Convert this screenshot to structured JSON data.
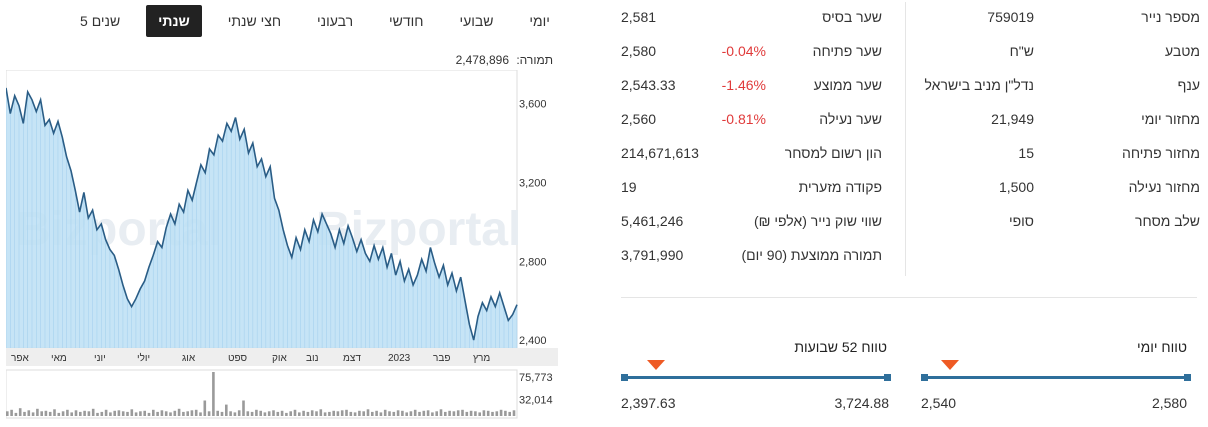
{
  "tabs": [
    {
      "label": "יומי",
      "active": false
    },
    {
      "label": "שבועי",
      "active": false
    },
    {
      "label": "חודשי",
      "active": false
    },
    {
      "label": "רבעוני",
      "active": false
    },
    {
      "label": "חצי שנתי",
      "active": false
    },
    {
      "label": "שנתי",
      "active": true
    },
    {
      "label": "5 שנים",
      "active": false
    }
  ],
  "volume_header": {
    "label": "תמורה:",
    "value": "2,478,896"
  },
  "chart_data": {
    "type": "area",
    "watermark": "Bizportal",
    "y_ticks": [
      "3,600",
      "3,200",
      "2,800",
      "2,400"
    ],
    "y_tick_values": [
      3600,
      3200,
      2800,
      2400
    ],
    "ylim": [
      2360,
      3700
    ],
    "x_ticks": [
      "אפר",
      "מאי",
      "יוני",
      "יולי",
      "אוג",
      "ספט",
      "אוק",
      "נוב",
      "דצמ",
      "2023",
      "פבר",
      "מרץ"
    ],
    "values": [
      3680,
      3550,
      3640,
      3590,
      3500,
      3660,
      3620,
      3560,
      3620,
      3490,
      3520,
      3450,
      3510,
      3430,
      3330,
      3260,
      3160,
      3050,
      3150,
      3020,
      3060,
      2960,
      2990,
      2910,
      2860,
      2830,
      2760,
      2680,
      2610,
      2570,
      2610,
      2660,
      2700,
      2770,
      2830,
      2900,
      2870,
      2970,
      3040,
      2990,
      3090,
      3050,
      3160,
      3110,
      3200,
      3290,
      3250,
      3370,
      3340,
      3440,
      3410,
      3500,
      3460,
      3530,
      3420,
      3470,
      3350,
      3400,
      3280,
      3320,
      3230,
      3280,
      3120,
      3060,
      2960,
      2880,
      2820,
      2920,
      2860,
      2960,
      2900,
      3010,
      2950,
      3040,
      2990,
      2940,
      2870,
      2960,
      2890,
      2980,
      2920,
      2850,
      2910,
      2840,
      2800,
      2880,
      2810,
      2870,
      2770,
      2840,
      2730,
      2800,
      2700,
      2760,
      2680,
      2730,
      2810,
      2750,
      2870,
      2790,
      2720,
      2780,
      2680,
      2740,
      2650,
      2720,
      2600,
      2480,
      2400,
      2520,
      2590,
      2550,
      2620,
      2570,
      2640,
      2570,
      2500,
      2530,
      2580
    ],
    "volume_ticks": [
      "75,773",
      "32,014"
    ],
    "volume_tick_values": [
      75773,
      32014
    ],
    "volume_max": 85000,
    "volumes": [
      9000,
      12000,
      6000,
      15000,
      8000,
      11000,
      7000,
      14000,
      9000,
      10000,
      8000,
      13000,
      6000,
      9000,
      12000,
      7000,
      11000,
      8000,
      10000,
      9000,
      14000,
      6000,
      8000,
      12000,
      7000,
      10000,
      11000,
      9000,
      8000,
      13000,
      7000,
      9000,
      10000,
      6000,
      12000,
      8000,
      11000,
      9000,
      7000,
      10000,
      14000,
      8000,
      9000,
      11000,
      12000,
      7000,
      30000,
      9000,
      85000,
      10000,
      8000,
      22000,
      9000,
      7000,
      11000,
      30000,
      9000,
      8000,
      12000,
      10000,
      7000,
      9000,
      11000,
      8000,
      10000,
      6000,
      9000,
      12000,
      7000,
      10000,
      8000,
      11000,
      9000,
      13000,
      7000,
      8000,
      10000,
      9000,
      11000,
      12000,
      8000,
      7000,
      10000,
      9000,
      13000,
      8000,
      10000,
      7000,
      12000,
      9000,
      8000,
      11000,
      10000,
      7000,
      9000,
      12000,
      8000,
      10000,
      11000,
      7000,
      9000,
      13000,
      8000,
      10000,
      9000,
      11000,
      12000,
      8000,
      10000,
      9000,
      7000,
      11000,
      10000,
      8000,
      9000,
      12000,
      10000,
      8000,
      11000
    ]
  },
  "info_right": [
    {
      "label": "מספר נייר",
      "value": "759019"
    },
    {
      "label": "מטבע",
      "value": "ש\"ח"
    },
    {
      "label": "ענף",
      "value": "נדל\"ן מניב בישראל"
    },
    {
      "label": "מחזור יומי",
      "value": "21,949"
    },
    {
      "label": "מחזור פתיחה",
      "value": "15"
    },
    {
      "label": "מחזור נעילה",
      "value": "1,500"
    },
    {
      "label": "שלב מסחר",
      "value": "סופי"
    }
  ],
  "info_left": [
    {
      "label": "שער בסיס",
      "change": "",
      "value": "2,581"
    },
    {
      "label": "שער פתיחה",
      "change": "-0.04%",
      "value": "2,580"
    },
    {
      "label": "שער ממוצע",
      "change": "-1.46%",
      "value": "2,543.33"
    },
    {
      "label": "שער נעילה",
      "change": "-0.81%",
      "value": "2,560"
    },
    {
      "label": "הון רשום למסחר",
      "change": "",
      "value": "214,671,613"
    },
    {
      "label": "פקודה מזערית",
      "change": "",
      "value": "19"
    },
    {
      "label": "שווי שוק נייר (אלפי ₪)",
      "change": "",
      "value": "5,461,246"
    },
    {
      "label": "תמורה ממוצעת (90 יום)",
      "change": "",
      "value": "3,791,990"
    }
  ],
  "range_daily": {
    "title": "טווח יומי",
    "high": "2,580",
    "low": "2,540",
    "position": 0.9
  },
  "range_52w": {
    "title": "טווח 52 שבועות",
    "high": "3,724.88",
    "low": "2,397.63",
    "position": 0.88
  },
  "colors": {
    "accent_bar": "#2f6f9b",
    "marker": "#ee5a24",
    "negative": "#e03a3a",
    "area_fill": "#bcdff5",
    "line": "#2a5d86"
  }
}
